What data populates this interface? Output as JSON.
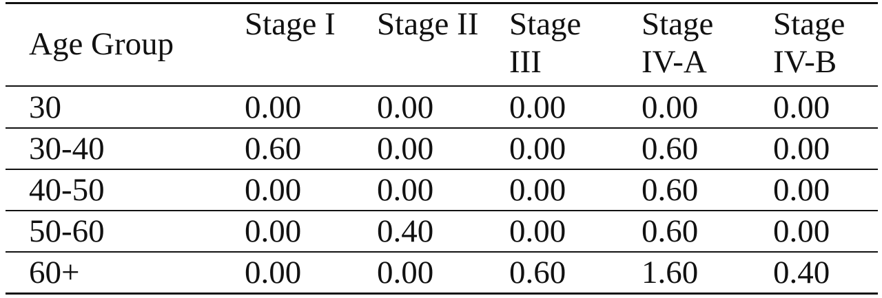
{
  "table": {
    "header": [
      "Age Group",
      "Stage I",
      "Stage II",
      "Stage III",
      "Stage IV-A",
      "Stage IV-B"
    ],
    "rows": [
      [
        "30",
        "0.00",
        "0.00",
        "0.00",
        "0.00",
        "0.00"
      ],
      [
        "30-40",
        "0.60",
        "0.00",
        "0.00",
        "0.60",
        "0.00"
      ],
      [
        "40-50",
        "0.00",
        "0.00",
        "0.00",
        "0.60",
        "0.00"
      ],
      [
        "50-60",
        "0.00",
        "0.40",
        "0.00",
        "0.60",
        "0.00"
      ],
      [
        "60+",
        "0.00",
        "0.00",
        "0.60",
        "1.60",
        "0.40"
      ]
    ]
  }
}
